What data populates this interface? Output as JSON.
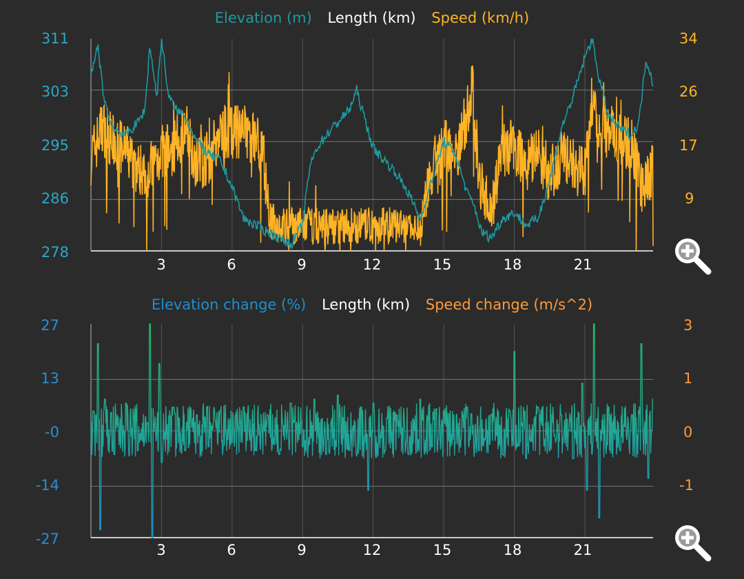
{
  "chart_data": [
    {
      "type": "line",
      "legend": {
        "left_series": "Elevation (m)",
        "x_axis": "Length (km)",
        "right_series": "Speed (km/h)"
      },
      "colors": {
        "left": "#1f9aa0",
        "right": "#ffb326",
        "left_ticks": "#2aa8c8",
        "right_ticks": "#ffb326"
      },
      "xlim": [
        0,
        23.9
      ],
      "x_ticks": [
        "3",
        "6",
        "9",
        "12",
        "15",
        "18",
        "21"
      ],
      "x_tick_values": [
        3,
        6,
        9,
        12,
        15,
        18,
        21
      ],
      "ylim_left": [
        278,
        311
      ],
      "ylim_right": [
        0,
        34
      ],
      "y_ticks_left": [
        "311",
        "303",
        "295",
        "286",
        "278"
      ],
      "y_ticks_right": [
        "34",
        "26",
        "17",
        "9",
        "0"
      ],
      "y_tick_values_left": [
        311,
        303,
        295,
        286,
        278
      ],
      "series": [
        {
          "name": "Elevation (m)",
          "axis": "left",
          "x": [
            0.0,
            0.3,
            0.5,
            0.8,
            1.0,
            1.5,
            2.0,
            2.3,
            2.5,
            2.8,
            3.0,
            3.3,
            3.6,
            4.0,
            4.5,
            5.0,
            5.5,
            6.0,
            6.5,
            7.0,
            7.5,
            8.0,
            8.5,
            9.0,
            9.3,
            9.6,
            10.0,
            10.5,
            11.0,
            11.3,
            11.6,
            12.0,
            12.5,
            13.0,
            13.5,
            14.0,
            14.5,
            15.0,
            15.5,
            16.0,
            16.3,
            16.6,
            17.0,
            17.5,
            18.0,
            18.5,
            19.0,
            19.5,
            20.0,
            20.5,
            21.0,
            21.3,
            21.6,
            22.0,
            22.5,
            23.0,
            23.3,
            23.6,
            23.9
          ],
          "values": [
            305,
            310,
            303,
            298,
            297,
            296,
            298,
            300,
            310,
            302,
            311,
            302,
            300,
            299,
            295,
            293,
            292,
            288,
            283,
            282,
            281,
            280,
            279,
            282,
            291,
            294,
            296,
            298,
            300,
            303,
            299,
            294,
            292,
            290,
            287,
            283,
            289,
            295,
            293,
            287,
            285,
            281,
            280,
            283,
            284,
            282,
            283,
            289,
            297,
            302,
            308,
            311,
            305,
            299,
            297,
            296,
            298,
            308,
            304
          ]
        },
        {
          "name": "Speed (km/h)",
          "axis": "right",
          "x": [
            0.0,
            0.5,
            0.8,
            1.0,
            1.5,
            2.0,
            2.5,
            3.0,
            3.5,
            4.0,
            4.5,
            5.0,
            5.5,
            6.0,
            6.5,
            7.0,
            7.3,
            7.6,
            8.0,
            9.0,
            10.0,
            11.0,
            12.0,
            13.0,
            14.0,
            14.3,
            14.7,
            15.0,
            15.5,
            16.0,
            16.2,
            16.5,
            17.0,
            17.5,
            18.0,
            18.5,
            19.0,
            19.5,
            20.0,
            20.5,
            21.0,
            21.3,
            21.6,
            22.0,
            22.5,
            23.0,
            23.5,
            23.9
          ],
          "values": [
            15,
            20,
            18,
            17,
            16,
            13,
            13,
            16,
            16,
            20,
            14,
            15,
            19,
            19,
            19,
            18,
            17,
            5,
            4,
            4,
            4,
            4,
            4,
            4,
            3,
            11,
            13,
            17,
            15,
            22,
            27,
            12,
            6,
            16,
            17,
            14,
            16,
            12,
            15,
            14,
            12,
            22,
            20,
            19,
            18,
            17,
            9,
            14
          ]
        }
      ]
    },
    {
      "type": "line",
      "legend": {
        "left_series": "Elevation change (%)",
        "x_axis": "Length (km)",
        "right_series": "Speed change (m/s^2)"
      },
      "colors": {
        "left_top": "#22b86a",
        "left_bottom": "#1d8fd0",
        "left_ticks": "#2a8fd0",
        "right_ticks": "#ff9a3c"
      },
      "xlim": [
        0,
        23.9
      ],
      "x_ticks": [
        "3",
        "6",
        "9",
        "12",
        "15",
        "18",
        "21"
      ],
      "x_tick_values": [
        3,
        6,
        9,
        12,
        15,
        18,
        21
      ],
      "ylim_left": [
        -27,
        27
      ],
      "ylim_right": [
        -2,
        3
      ],
      "y_ticks_left": [
        "27",
        "13",
        "-0",
        "-14",
        "-27"
      ],
      "y_ticks_right": [
        "3",
        "1",
        "0",
        "-1",
        "-2"
      ],
      "y_tick_values_left": [
        27,
        13,
        0,
        -14,
        -27
      ],
      "series": [
        {
          "name": "Elevation change (%)",
          "axis": "left",
          "x": [
            0.1,
            0.3,
            0.4,
            0.6,
            1.0,
            1.5,
            2.0,
            2.4,
            2.5,
            2.6,
            2.9,
            3.0,
            3.5,
            4.0,
            4.5,
            5.0,
            5.5,
            6.0,
            6.5,
            7.0,
            7.5,
            8.0,
            8.5,
            9.0,
            9.5,
            10.0,
            10.5,
            11.0,
            11.5,
            11.8,
            12.0,
            12.5,
            13.0,
            13.5,
            14.0,
            14.5,
            15.0,
            15.5,
            16.0,
            16.5,
            17.0,
            17.5,
            17.8,
            18.0,
            18.5,
            19.0,
            19.5,
            20.0,
            20.5,
            20.9,
            21.1,
            21.4,
            21.6,
            22.0,
            22.5,
            23.0,
            23.4,
            23.7,
            23.9
          ],
          "values": [
            5,
            22,
            -25,
            8,
            -6,
            7,
            -5,
            2,
            27,
            -27,
            17,
            -8,
            6,
            -5,
            4,
            -4,
            5,
            -3,
            6,
            -5,
            4,
            -6,
            7,
            -4,
            8,
            -6,
            9,
            -5,
            6,
            -15,
            7,
            -5,
            4,
            -6,
            8,
            -4,
            5,
            -3,
            6,
            -5,
            4,
            -6,
            5,
            20,
            -7,
            6,
            -5,
            4,
            -7,
            12,
            -15,
            27,
            -22,
            6,
            -5,
            4,
            22,
            -12,
            8
          ]
        }
      ]
    }
  ]
}
